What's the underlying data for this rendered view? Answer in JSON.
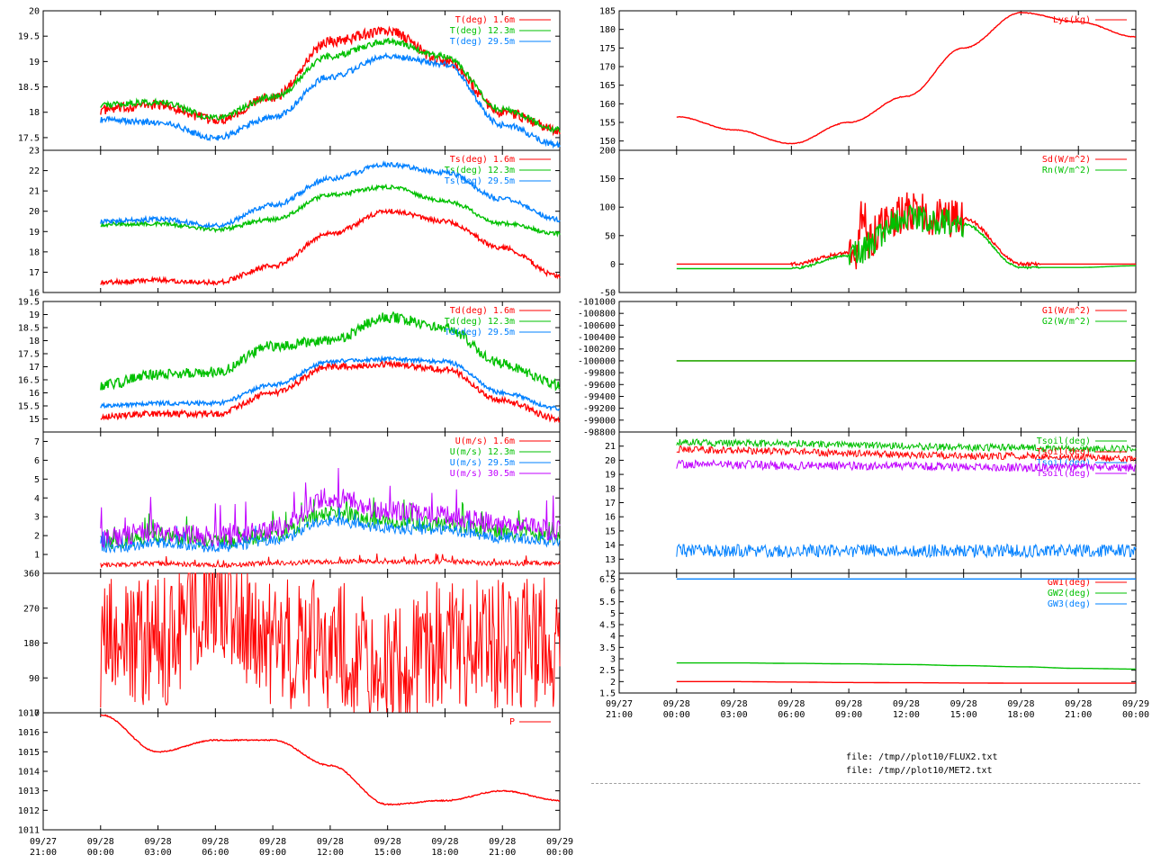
{
  "colors": {
    "red": "#ff0000",
    "green": "#00c000",
    "blue": "#0080ff",
    "purple": "#c000ff",
    "axis": "#000000",
    "grid": "#a0a0a0",
    "background": "#ffffff"
  },
  "files": [
    "file: /tmp//plot10/FLUX2.txt",
    "file: /tmp//plot10/MET2.txt"
  ],
  "chart_data": [
    {
      "id": "air_temp",
      "type": "line",
      "ylim": [
        17.25,
        20
      ],
      "yticks": [
        "17.5",
        "18",
        "18.5",
        "19",
        "19.5",
        "20"
      ],
      "x": [
        "09/28 00:00",
        "09/28 03:00",
        "09/28 06:00",
        "09/28 09:00",
        "09/28 12:00",
        "09/28 15:00",
        "09/28 18:00",
        "09/28 21:00",
        "09/29 00:00"
      ],
      "series": [
        {
          "name": "T(deg)  1.6m",
          "color": "red",
          "noise": 0.1,
          "values": [
            18.05,
            18.15,
            17.85,
            18.3,
            19.4,
            19.6,
            19.0,
            18.0,
            17.65
          ]
        },
        {
          "name": "T(deg) 12.3m",
          "color": "green",
          "noise": 0.06,
          "values": [
            18.15,
            18.2,
            17.9,
            18.3,
            19.1,
            19.4,
            19.1,
            18.05,
            17.65
          ]
        },
        {
          "name": "T(deg) 29.5m",
          "color": "blue",
          "noise": 0.06,
          "values": [
            17.85,
            17.8,
            17.5,
            17.9,
            18.7,
            19.1,
            18.95,
            17.75,
            17.35
          ]
        }
      ]
    },
    {
      "id": "surface_temp",
      "type": "line",
      "ylim": [
        16,
        23
      ],
      "yticks": [
        "16",
        "17",
        "18",
        "19",
        "20",
        "21",
        "22",
        "23"
      ],
      "x": [
        "09/28 00:00",
        "09/28 03:00",
        "09/28 06:00",
        "09/28 09:00",
        "09/28 12:00",
        "09/28 15:00",
        "09/28 18:00",
        "09/28 21:00",
        "09/29 00:00"
      ],
      "series": [
        {
          "name": "Ts(deg)  1.6m",
          "color": "red",
          "noise": 0.12,
          "values": [
            16.5,
            16.6,
            16.5,
            17.3,
            18.9,
            20.0,
            19.5,
            18.2,
            16.8
          ]
        },
        {
          "name": "Ts(deg) 12.3m",
          "color": "green",
          "noise": 0.1,
          "values": [
            19.35,
            19.4,
            19.1,
            19.6,
            20.8,
            21.2,
            20.5,
            19.4,
            18.9
          ]
        },
        {
          "name": "Ts(deg) 29.5m",
          "color": "blue",
          "noise": 0.12,
          "values": [
            19.5,
            19.6,
            19.3,
            20.3,
            21.6,
            22.3,
            21.9,
            20.6,
            19.6
          ]
        }
      ]
    },
    {
      "id": "dewpoint",
      "type": "line",
      "ylim": [
        14.5,
        19.5
      ],
      "yticks": [
        "15",
        "15.5",
        "16",
        "16.5",
        "17",
        "17.5",
        "18",
        "18.5",
        "19",
        "19.5"
      ],
      "x": [
        "09/28 00:00",
        "09/28 03:00",
        "09/28 06:00",
        "09/28 09:00",
        "09/28 12:00",
        "09/28 15:00",
        "09/28 18:00",
        "09/28 21:00",
        "09/29 00:00"
      ],
      "series": [
        {
          "name": "Td(deg)  1.6m",
          "color": "red",
          "noise": 0.12,
          "values": [
            15.1,
            15.2,
            15.2,
            16.0,
            17.0,
            17.1,
            16.9,
            15.7,
            15.0
          ]
        },
        {
          "name": "Td(deg) 12.3m",
          "color": "green",
          "noise": 0.2,
          "values": [
            16.3,
            16.7,
            16.8,
            17.8,
            18.0,
            18.9,
            18.5,
            17.1,
            16.3
          ]
        },
        {
          "name": "Td(deg) 29.5m",
          "color": "blue",
          "noise": 0.08,
          "values": [
            15.5,
            15.6,
            15.6,
            16.3,
            17.2,
            17.3,
            17.2,
            16.0,
            15.4
          ]
        }
      ]
    },
    {
      "id": "wind_speed",
      "type": "line",
      "ylim": [
        0,
        7.5
      ],
      "yticks": [
        "1",
        "2",
        "3",
        "4",
        "5",
        "6",
        "7"
      ],
      "x": [
        "09/28 00:00",
        "09/28 03:00",
        "09/28 06:00",
        "09/28 09:00",
        "09/28 12:00",
        "09/28 15:00",
        "09/28 18:00",
        "09/28 21:00",
        "09/29 00:00"
      ],
      "series": [
        {
          "name": "U(m/s)  1.6m",
          "color": "red",
          "noise": 0.25,
          "values": [
            0.3,
            0.4,
            0.3,
            0.4,
            0.5,
            0.5,
            0.5,
            0.4,
            0.4
          ]
        },
        {
          "name": "U(m/s) 12.3m",
          "color": "green",
          "noise": 0.8,
          "values": [
            1.2,
            1.5,
            1.3,
            1.6,
            2.8,
            2.3,
            2.2,
            1.8,
            1.6
          ]
        },
        {
          "name": "U(m/s) 29.5m",
          "color": "blue",
          "noise": 0.6,
          "values": [
            1.0,
            1.3,
            1.1,
            1.4,
            2.5,
            2.1,
            2.0,
            1.6,
            1.4
          ]
        },
        {
          "name": "U(m/s) 30.5m",
          "color": "purple",
          "noise": 1.1,
          "values": [
            1.3,
            1.7,
            1.4,
            1.8,
            3.5,
            2.8,
            2.5,
            2.0,
            1.7
          ]
        }
      ]
    },
    {
      "id": "wind_dir",
      "type": "line",
      "ylim": [
        0,
        360
      ],
      "yticks": [
        "0",
        "90",
        "180",
        "270",
        "360"
      ],
      "x": [
        "09/28 00:00",
        "09/28 03:00",
        "09/28 06:00",
        "09/28 09:00",
        "09/28 12:00",
        "09/28 15:00",
        "09/28 18:00",
        "09/28 21:00",
        "09/29 00:00"
      ],
      "series": [
        {
          "name": "",
          "color": "red",
          "noise": 170,
          "values": [
            180,
            180,
            320,
            180,
            180,
            100,
            180,
            180,
            180
          ]
        }
      ]
    },
    {
      "id": "pressure",
      "type": "line",
      "ylim": [
        1011,
        1017
      ],
      "yticks": [
        "1011",
        "1012",
        "1013",
        "1014",
        "1015",
        "1016",
        "1017"
      ],
      "x": [
        "09/28 00:00",
        "09/28 03:00",
        "09/28 06:00",
        "09/28 09:00",
        "09/28 12:00",
        "09/28 15:00",
        "09/28 18:00",
        "09/28 21:00",
        "09/29 00:00"
      ],
      "series": [
        {
          "name": "P",
          "color": "red",
          "noise": 0.03,
          "values": [
            1016.9,
            1015.0,
            1015.6,
            1015.6,
            1014.3,
            1012.3,
            1012.5,
            1013.0,
            1012.5
          ]
        }
      ]
    },
    {
      "id": "lys",
      "type": "line",
      "ylim": [
        147.5,
        185
      ],
      "yticks": [
        "150",
        "155",
        "160",
        "165",
        "170",
        "175",
        "180",
        "185"
      ],
      "x": [
        "09/28 00:00",
        "09/28 03:00",
        "09/28 06:00",
        "09/28 09:00",
        "09/28 12:00",
        "09/28 15:00",
        "09/28 18:00",
        "09/28 21:00",
        "09/29 00:00"
      ],
      "series": [
        {
          "name": "Lys(kg)",
          "color": "red",
          "noise": 0.1,
          "values": [
            156.5,
            153.0,
            149.3,
            155.0,
            162.0,
            175.0,
            184.5,
            182.0,
            178.0
          ]
        }
      ]
    },
    {
      "id": "radiation",
      "type": "line",
      "ylim": [
        -50,
        200
      ],
      "yticks": [
        "-50",
        "0",
        "50",
        "100",
        "150",
        "200"
      ],
      "x": [
        "09/28 00:00",
        "09/28 03:00",
        "09/28 06:00",
        "09/28 09:00",
        "09/28 12:00",
        "09/28 15:00",
        "09/28 18:00",
        "09/28 21:00",
        "09/29 00:00"
      ],
      "series": [
        {
          "name": "Sd(W/m^2)",
          "color": "red",
          "noise": 3,
          "values": [
            0,
            0,
            0,
            20,
            90,
            80,
            0,
            0,
            0
          ]
        },
        {
          "name": "Rn(W/m^2)",
          "color": "green",
          "noise": 2,
          "values": [
            -8,
            -8,
            -8,
            15,
            80,
            70,
            -6,
            -6,
            -3
          ]
        }
      ]
    },
    {
      "id": "ground_flux",
      "type": "line",
      "ylim": [
        -98800,
        -101000
      ],
      "yticks": [
        "-98800",
        "-99000",
        "-99200",
        "-99400",
        "-99600",
        "-99800",
        "-100000",
        "-100200",
        "-100400",
        "-100600",
        "-100800",
        "-101000"
      ],
      "x": [
        "09/28 00:00",
        "09/28 03:00",
        "09/28 06:00",
        "09/28 09:00",
        "09/28 12:00",
        "09/28 15:00",
        "09/28 18:00",
        "09/28 21:00",
        "09/29 00:00"
      ],
      "series": [
        {
          "name": "G1(W/m^2)",
          "color": "red",
          "noise": 0,
          "values": [
            -100000,
            -100000,
            -100000,
            -100000,
            -100000,
            -100000,
            -100000,
            -100000,
            -100000
          ]
        },
        {
          "name": "G2(W/m^2)",
          "color": "green",
          "noise": 0,
          "values": [
            -100000,
            -100000,
            -100000,
            -100000,
            -100000,
            -100000,
            -100000,
            -100000,
            -100000
          ]
        }
      ]
    },
    {
      "id": "soil_temp",
      "type": "line",
      "ylim": [
        12,
        22
      ],
      "yticks": [
        "12",
        "13",
        "14",
        "15",
        "16",
        "17",
        "18",
        "19",
        "20",
        "21"
      ],
      "x": [
        "09/28 00:00",
        "09/28 03:00",
        "09/28 06:00",
        "09/28 09:00",
        "09/28 12:00",
        "09/28 15:00",
        "09/28 18:00",
        "09/28 21:00",
        "09/29 00:00"
      ],
      "series": [
        {
          "name": "Tsoil(deg)",
          "color": "green",
          "noise": 0.25,
          "values": [
            21.3,
            21.2,
            21.2,
            21.1,
            21.0,
            20.9,
            20.9,
            20.8,
            20.8
          ]
        },
        {
          "name": "Tsoil(deg)",
          "color": "red",
          "noise": 0.25,
          "values": [
            20.8,
            20.7,
            20.6,
            20.5,
            20.4,
            20.3,
            20.3,
            20.2,
            20.1
          ]
        },
        {
          "name": "Tsoil(deg)",
          "color": "blue",
          "noise": 0.45,
          "values": [
            13.6,
            13.6,
            13.6,
            13.6,
            13.6,
            13.6,
            13.6,
            13.6,
            13.6
          ]
        },
        {
          "name": "Tsoil(deg)",
          "color": "purple",
          "noise": 0.3,
          "values": [
            19.7,
            19.7,
            19.6,
            19.6,
            19.6,
            19.5,
            19.5,
            19.5,
            19.5
          ]
        }
      ]
    },
    {
      "id": "ground_water",
      "type": "line",
      "ylim": [
        1.5,
        6.75
      ],
      "yticks": [
        "1.5",
        "2",
        "2.5",
        "3",
        "3.5",
        "4",
        "4.5",
        "5",
        "5.5",
        "6",
        "6.5"
      ],
      "x": [
        "09/28 00:00",
        "09/28 03:00",
        "09/28 06:00",
        "09/28 09:00",
        "09/28 12:00",
        "09/28 15:00",
        "09/28 18:00",
        "09/28 21:00",
        "09/29 00:00"
      ],
      "series": [
        {
          "name": "GW1(deg)",
          "color": "red",
          "noise": 0,
          "values": [
            2.0,
            2.0,
            1.98,
            1.96,
            1.95,
            1.94,
            1.93,
            1.93,
            1.93
          ]
        },
        {
          "name": "GW2(deg)",
          "color": "green",
          "noise": 0,
          "values": [
            2.82,
            2.82,
            2.8,
            2.78,
            2.75,
            2.7,
            2.65,
            2.58,
            2.55
          ]
        },
        {
          "name": "GW3(deg)",
          "color": "blue",
          "noise": 0,
          "values": [
            6.5,
            6.5,
            6.5,
            6.5,
            6.5,
            6.5,
            6.5,
            6.5,
            6.5
          ]
        }
      ]
    }
  ],
  "x_axis": {
    "ticks_left": [
      [
        "09/27",
        "21:00"
      ],
      [
        "09/28",
        "00:00"
      ],
      [
        "09/28",
        "03:00"
      ],
      [
        "09/28",
        "06:00"
      ],
      [
        "09/28",
        "09:00"
      ],
      [
        "09/28",
        "12:00"
      ],
      [
        "09/28",
        "15:00"
      ],
      [
        "09/28",
        "18:00"
      ],
      [
        "09/28",
        "21:00"
      ],
      [
        "09/29",
        "00:00"
      ]
    ],
    "ticks_right": [
      [
        "09/27",
        "21:00"
      ],
      [
        "09/28",
        "00:00"
      ],
      [
        "09/28",
        "03:00"
      ],
      [
        "09/28",
        "06:00"
      ],
      [
        "09/28",
        "09:00"
      ],
      [
        "09/28",
        "12:00"
      ],
      [
        "09/28",
        "15:00"
      ],
      [
        "09/28",
        "18:00"
      ],
      [
        "09/28",
        "21:00"
      ],
      [
        "09/29",
        "00:00"
      ]
    ]
  }
}
